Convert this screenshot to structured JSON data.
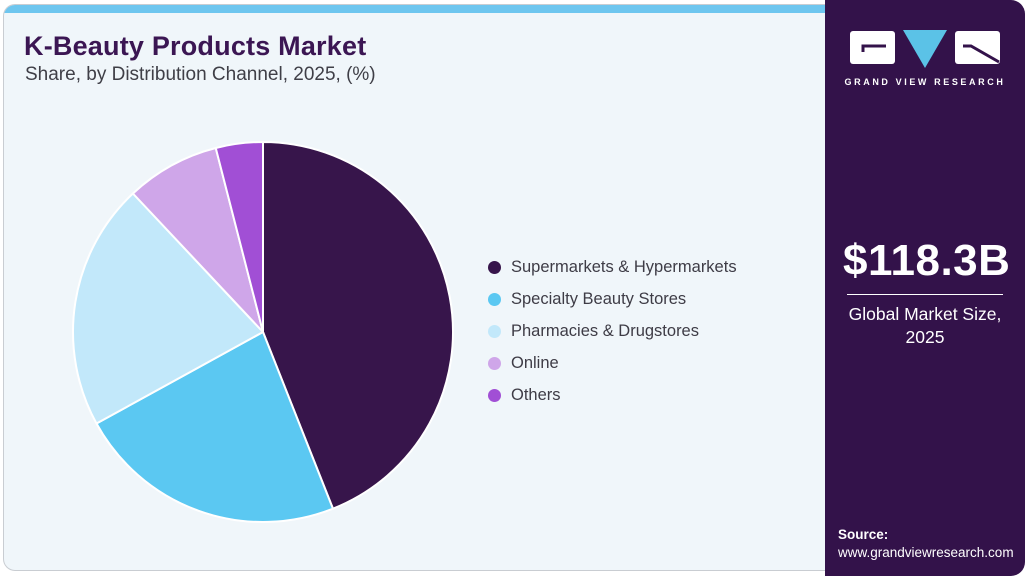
{
  "header": {
    "title": "K-Beauty Products Market",
    "subtitle": "Share, by Distribution Channel, 2025, (%)"
  },
  "chart_data": {
    "type": "pie",
    "title": "K-Beauty Products Market Share, by Distribution Channel, 2025, (%)",
    "unit": "%",
    "start_angle_deg": 0,
    "direction": "clockwise",
    "legend_position": "right",
    "slices": [
      {
        "label": "Supermarkets & Hypermarkets",
        "value": 44,
        "color": "#37154B"
      },
      {
        "label": "Specialty Beauty Stores",
        "value": 23,
        "color": "#5BC8F2"
      },
      {
        "label": "Pharmacies & Drugstores",
        "value": 21,
        "color": "#C2E8FA"
      },
      {
        "label": "Online",
        "value": 8,
        "color": "#CFA6E9"
      },
      {
        "label": "Others",
        "value": 4,
        "color": "#A14FD5"
      }
    ]
  },
  "sidebar": {
    "logo_text": "GRAND VIEW RESEARCH",
    "market_size_value": "$118.3B",
    "market_size_label": "Global Market Size, 2025",
    "source_label": "Source:",
    "source_url": "www.grandviewresearch.com",
    "background_color": "#33124A",
    "accent_blue": "#5BC2E7"
  },
  "theme": {
    "top_bar_color": "#6EC6EF",
    "card_background": "#F0F6FA",
    "card_border": "#C9CDD2",
    "title_color": "#3B1653",
    "subtitle_color": "#3F3F47",
    "legend_text_color": "#3E3C46"
  }
}
